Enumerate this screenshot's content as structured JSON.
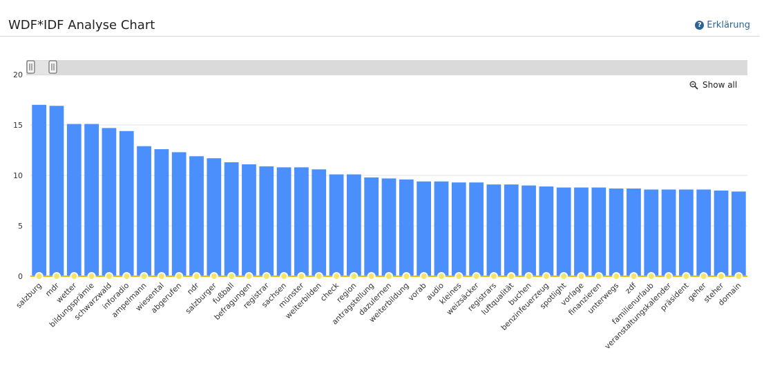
{
  "header": {
    "title": "WDF*IDF Analyse Chart",
    "help_label": "Erklärung"
  },
  "toolbar": {
    "show_all_label": "Show all"
  },
  "colors": {
    "bar": "#4a8ffc",
    "baseline": "#f0b800",
    "marker_fill": "#f5e46a",
    "marker_stroke": "#ffffff",
    "grid": "#e3e3e3",
    "scrollbar_track": "#dadada"
  },
  "icons": [
    "help-circle-icon",
    "zoom-icon",
    "scroll-handle-icon"
  ],
  "chart_data": {
    "type": "bar",
    "title": "",
    "xlabel": "",
    "ylabel": "",
    "ylim": [
      0,
      20
    ],
    "yticks": [
      0,
      5,
      10,
      15,
      20
    ],
    "grid": true,
    "categories": [
      "salzburg",
      "mdr",
      "wetter",
      "bildungsprämie",
      "schwarzwald",
      "inforadio",
      "ampelmann",
      "wiesental",
      "abgerufen",
      "ndr",
      "salzburger",
      "fußball",
      "befragungen",
      "registrar",
      "sachsen",
      "münster",
      "weiterbilden",
      "check",
      "region",
      "antragstellung",
      "dazulernen",
      "weiterbildung",
      "vorab",
      "audio",
      "kleines",
      "weizsäcker",
      "registrars",
      "luftqualität",
      "buchen",
      "benzinfeuerzeug",
      "spotlight",
      "vorlage",
      "finanzieren",
      "unterwegs",
      "zdf",
      "familienurlaub",
      "veranstaltungskalender",
      "präsident",
      "geher",
      "steher",
      "domain"
    ],
    "values": [
      17.0,
      16.9,
      15.1,
      15.1,
      14.7,
      14.4,
      12.9,
      12.6,
      12.3,
      11.9,
      11.7,
      11.3,
      11.1,
      10.9,
      10.8,
      10.8,
      10.6,
      10.1,
      10.1,
      9.8,
      9.7,
      9.6,
      9.4,
      9.4,
      9.3,
      9.3,
      9.1,
      9.1,
      9.0,
      8.9,
      8.8,
      8.8,
      8.8,
      8.7,
      8.7,
      8.6,
      8.6,
      8.6,
      8.6,
      8.5,
      8.4
    ]
  }
}
